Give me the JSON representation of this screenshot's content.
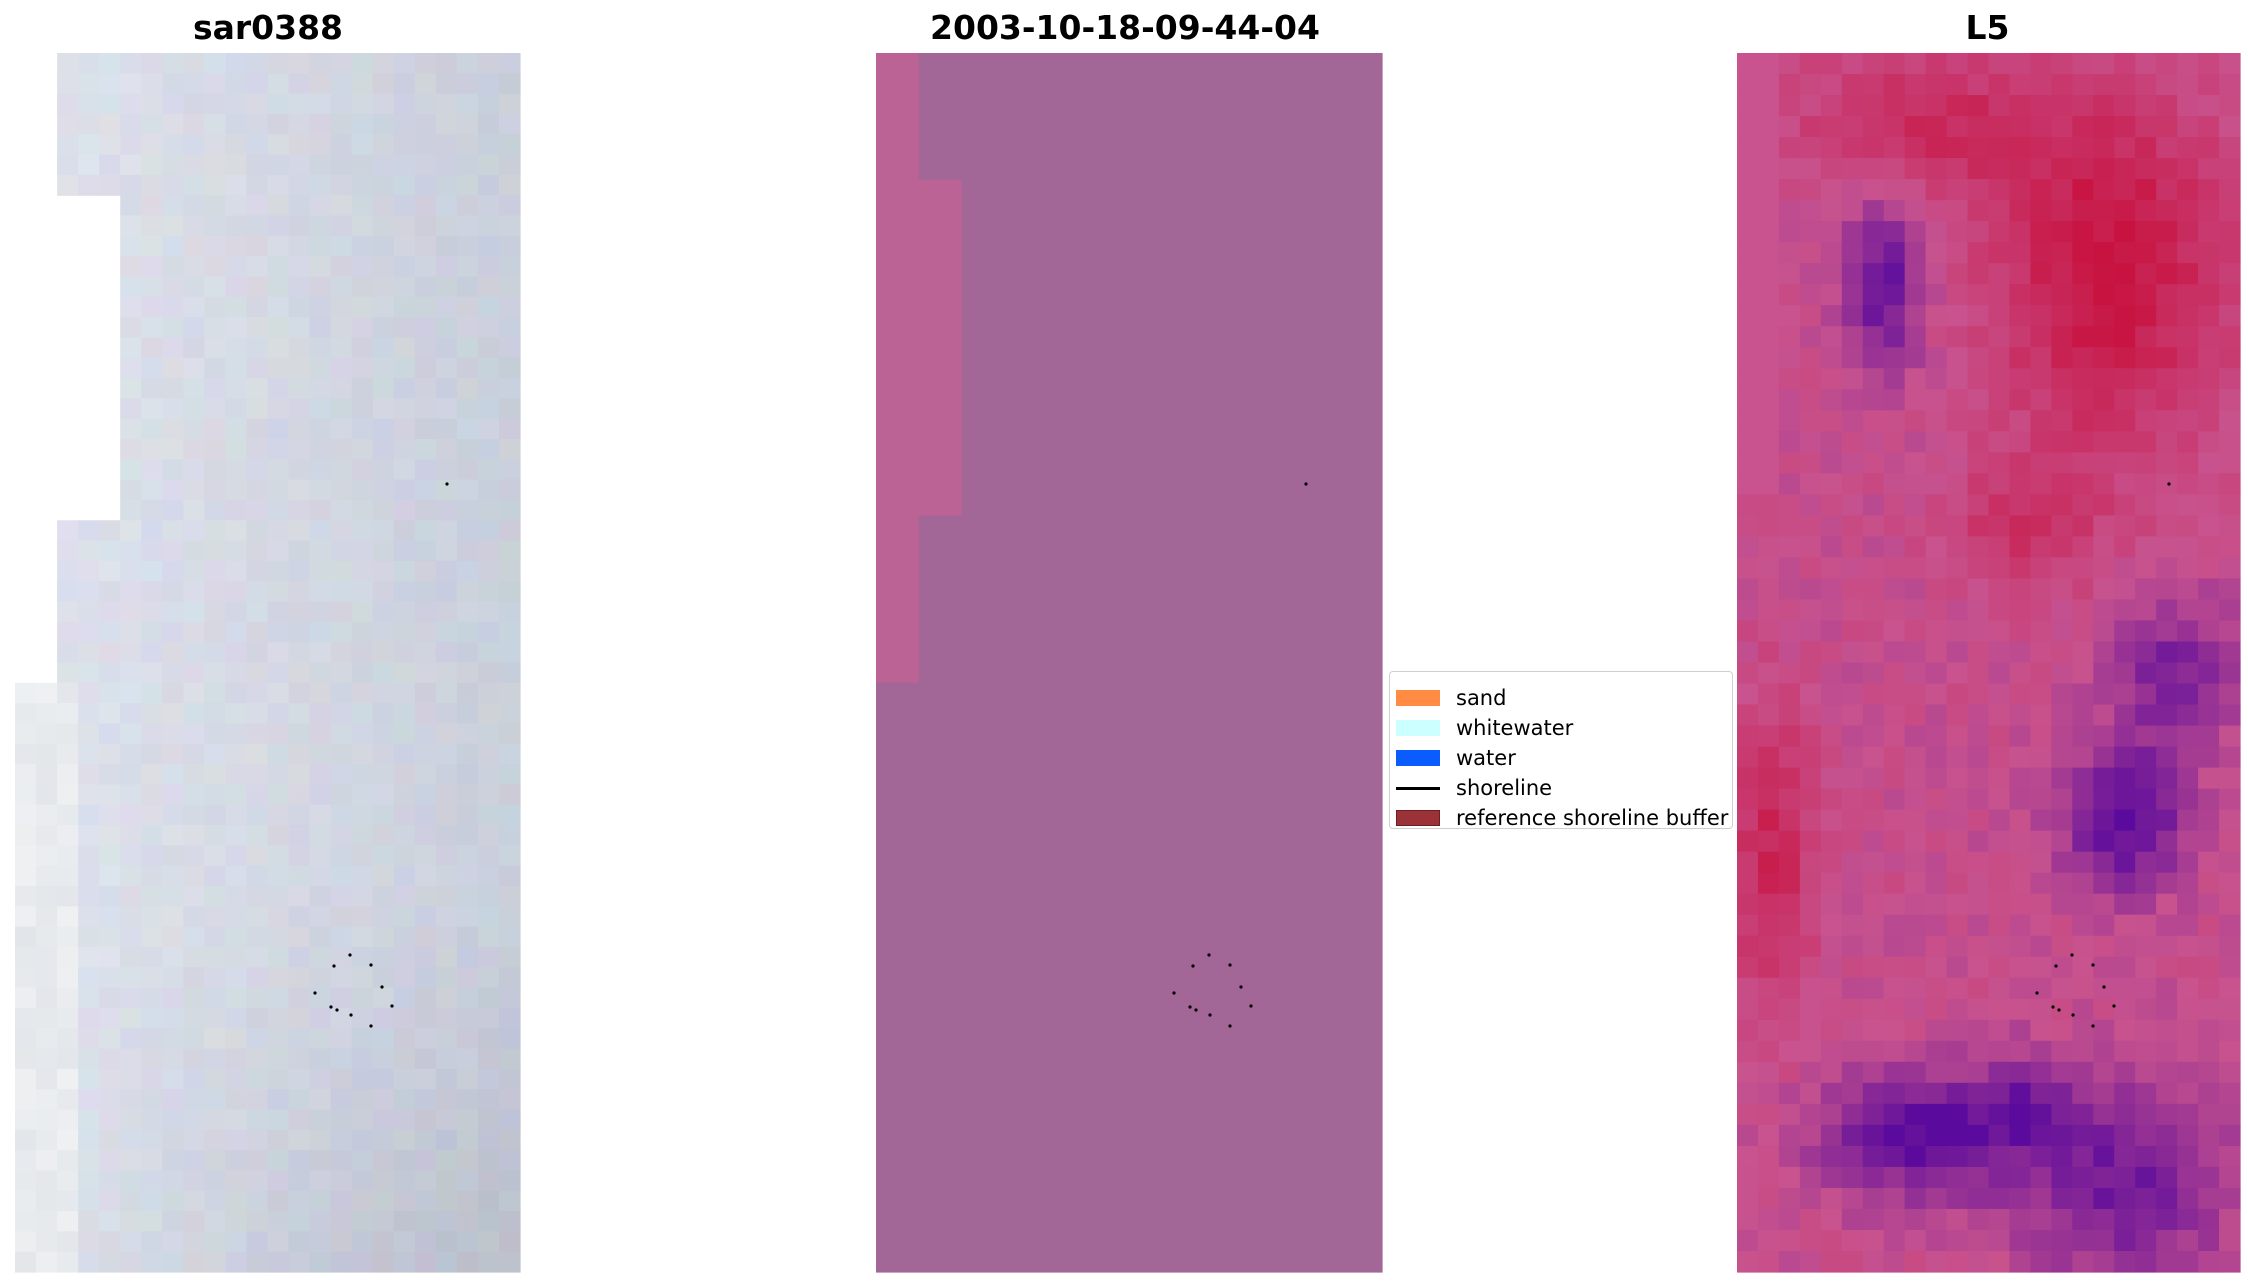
{
  "figure": {
    "panels": [
      {
        "title": "sar0388",
        "kind": "satellite-rgb"
      },
      {
        "title": "2003-10-18-09-44-04",
        "kind": "classification"
      },
      {
        "title": "L5",
        "kind": "index-map"
      }
    ],
    "legend": {
      "placement": "center-right",
      "entries": [
        {
          "label": "sand",
          "color": "#ff8c42",
          "type": "patch"
        },
        {
          "label": "whitewater",
          "color": "#ccffff",
          "type": "patch"
        },
        {
          "label": "water",
          "color": "#0a5cff",
          "type": "patch"
        },
        {
          "label": "shoreline",
          "color": "#000000",
          "type": "line"
        },
        {
          "label": "reference shoreline buffer",
          "color": "#9b3238",
          "type": "patch"
        }
      ]
    },
    "colors": {
      "classification_main": "#a36797",
      "classification_left": "#bc6395",
      "satellite_base": "#c9ced9",
      "index_pink": "#c8538e",
      "index_red": "#c8123f",
      "index_purple": "#5a0a9c"
    }
  }
}
